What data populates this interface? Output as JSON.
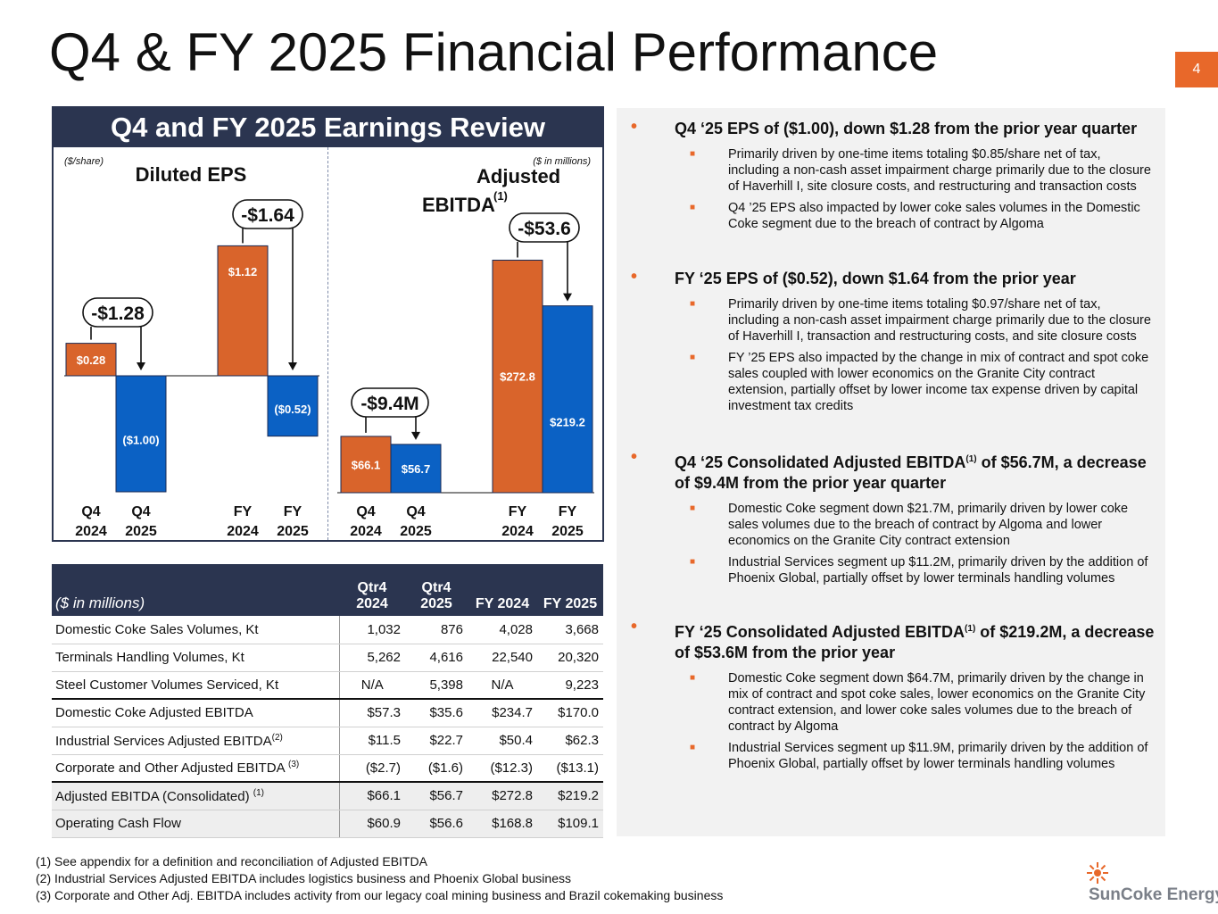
{
  "slide": {
    "title": "Q4 & FY 2025 Financial Performance",
    "page_number": "4",
    "accent_color": "#e8682a",
    "navy_color": "#2b3550",
    "blue_color": "#0b61c4",
    "orange_color": "#d9642b"
  },
  "panel": {
    "header": "Q4 and FY 2025 Earnings Review"
  },
  "chart_data": [
    {
      "type": "bar",
      "title": "Diluted EPS",
      "units": "($/share)",
      "categories": [
        "Q4 2024",
        "Q4 2025",
        "FY 2024",
        "FY 2025"
      ],
      "values": [
        0.28,
        -1.0,
        1.12,
        -0.52
      ],
      "value_labels": [
        "$0.28",
        "($1.00)",
        "$1.12",
        "($0.52)"
      ],
      "bar_colors": [
        "#d9642b",
        "#0b61c4",
        "#d9642b",
        "#0b61c4"
      ],
      "annotations": [
        "-$1.28",
        "-$1.64"
      ]
    },
    {
      "type": "bar",
      "title": "Adjusted EBITDA",
      "title_footnote": "(1)",
      "units": "($ in millions)",
      "categories": [
        "Q4 2024",
        "Q4 2025",
        "FY 2024",
        "FY 2025"
      ],
      "values": [
        66.1,
        56.7,
        272.8,
        219.2
      ],
      "value_labels": [
        "$66.1",
        "$56.7",
        "$272.8",
        "$219.2"
      ],
      "bar_colors": [
        "#d9642b",
        "#0b61c4",
        "#d9642b",
        "#0b61c4"
      ],
      "annotations": [
        "-$9.4M",
        "-$53.6"
      ]
    }
  ],
  "table": {
    "units_label": "($ in millions)",
    "columns": [
      "Qtr4 2024",
      "Qtr4 2025",
      "FY 2024",
      "FY 2025"
    ],
    "rows": [
      {
        "label": "Domestic Coke Sales Volumes, Kt",
        "sup": "",
        "values": [
          "1,032",
          "876",
          "4,028",
          "3,668"
        ]
      },
      {
        "label": "Terminals Handling Volumes, Kt",
        "sup": "",
        "values": [
          "5,262",
          "4,616",
          "22,540",
          "20,320"
        ]
      },
      {
        "label": "Steel Customer Volumes Serviced, Kt",
        "sup": "",
        "values": [
          "N/A",
          "5,398",
          "N/A",
          "9,223"
        ]
      },
      {
        "label": "Domestic Coke Adjusted EBITDA",
        "sup": "",
        "values": [
          "$57.3",
          "$35.6",
          "$234.7",
          "$170.0"
        ]
      },
      {
        "label": "Industrial Services Adjusted EBITDA",
        "sup": "(2)",
        "values": [
          "$11.5",
          "$22.7",
          "$50.4",
          "$62.3"
        ]
      },
      {
        "label": "Corporate and Other Adjusted EBITDA ",
        "sup": "(3)",
        "values": [
          "($2.7)",
          "($1.6)",
          "($12.3)",
          "($13.1)"
        ]
      },
      {
        "label": "Adjusted EBITDA (Consolidated) ",
        "sup": "(1)",
        "values": [
          "$66.1",
          "$56.7",
          "$272.8",
          "$219.2"
        ]
      },
      {
        "label": "Operating Cash Flow",
        "sup": "",
        "values": [
          "$60.9",
          "$56.6",
          "$168.8",
          "$109.1"
        ]
      }
    ]
  },
  "commentary": [
    {
      "text": "Q4 ‘25 EPS of ($1.00), down $1.28 from the prior year quarter",
      "subs": [
        "Primarily driven by one-time items totaling $0.85/share net of tax, including a non-cash asset impairment charge primarily due to the closure of Haverhill I, site closure costs, and restructuring and transaction costs",
        "Q4 ’25 EPS also impacted by lower coke sales volumes in the Domestic Coke segment due to the breach of contract by Algoma"
      ]
    },
    {
      "text": "FY ‘25 EPS of ($0.52), down $1.64 from the prior year",
      "subs": [
        "Primarily driven by one-time items totaling $0.97/share net of tax, including a non-cash asset impairment charge primarily due to the closure of Haverhill I, transaction and restructuring costs, and site closure costs",
        "FY ’25 EPS also impacted by the change in mix of contract and spot coke sales coupled with lower economics on the Granite City contract extension, partially offset by lower income tax expense driven by capital investment tax credits"
      ]
    },
    {
      "text_pre": "Q4 ‘25 Consolidated Adjusted EBITDA",
      "sup": "(1)",
      "text_post": " of $56.7M, a decrease of $9.4M from the prior year quarter",
      "subs": [
        "Domestic Coke segment down $21.7M, primarily driven by lower coke sales volumes due to the breach of contract by Algoma and lower economics on the Granite City contract extension",
        "Industrial Services segment up $11.2M, primarily driven by the addition of Phoenix Global, partially offset by lower terminals handling volumes"
      ]
    },
    {
      "text_pre": "FY ‘25 Consolidated Adjusted EBITDA",
      "sup": "(1)",
      "text_post": " of $219.2M, a decrease of $53.6M from the prior year",
      "subs": [
        "Domestic Coke segment down $64.7M, primarily driven by the change in mix of contract and spot coke sales, lower economics on the Granite City contract extension, and lower coke sales volumes due to the breach of contract by Algoma",
        "Industrial Services segment up $11.9M, primarily driven by the addition of Phoenix Global, partially offset by lower terminals handling volumes"
      ]
    }
  ],
  "footnotes": [
    "(1)  See appendix for a definition and reconciliation of Adjusted EBITDA",
    "(2)  Industrial Services Adjusted EBITDA includes logistics business and Phoenix Global business",
    "(3)  Corporate and Other Adj. EBITDA includes activity from our legacy coal mining business and Brazil cokemaking business"
  ],
  "logo": {
    "text": "SunCoke Energy",
    "mark": "®",
    "icon": "sun-icon"
  }
}
